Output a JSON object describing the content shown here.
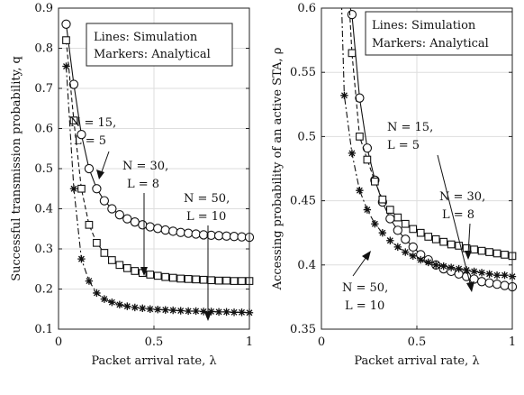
{
  "chart_data": [
    {
      "type": "line",
      "xlabel": "Packet arrival rate, λ",
      "ylabel": "Successful transmission probability, q",
      "xlim": [
        0,
        1
      ],
      "ylim": [
        0.1,
        0.9
      ],
      "xticks": [
        0,
        0.5,
        1
      ],
      "xtick_labels": [
        "0",
        "0.5",
        "1"
      ],
      "yticks": [
        0.1,
        0.2,
        0.3,
        0.4,
        0.5,
        0.6,
        0.7,
        0.8,
        0.9
      ],
      "ytick_labels": [
        "0.1",
        "0.2",
        "0.3",
        "0.4",
        "0.5",
        "0.6",
        "0.7",
        "0.8",
        "0.9"
      ],
      "grid": true,
      "legend": {
        "line1": "Lines: Simulation",
        "line2": "Markers: Analytical",
        "position": "top-right"
      },
      "x": [
        0.04,
        0.08,
        0.12,
        0.16,
        0.2,
        0.24,
        0.28,
        0.32,
        0.36,
        0.4,
        0.44,
        0.48,
        0.52,
        0.56,
        0.6,
        0.64,
        0.68,
        0.72,
        0.76,
        0.8,
        0.84,
        0.88,
        0.92,
        0.96,
        1.0
      ],
      "series": [
        {
          "name_line1": "N = 15,",
          "name_line2": "L = 5",
          "marker": "circle",
          "line": "solid",
          "values": [
            0.86,
            0.71,
            0.585,
            0.5,
            0.45,
            0.42,
            0.4,
            0.385,
            0.375,
            0.367,
            0.36,
            0.355,
            0.351,
            0.347,
            0.344,
            0.341,
            0.339,
            0.337,
            0.335,
            0.334,
            0.333,
            0.332,
            0.331,
            0.33,
            0.329
          ]
        },
        {
          "name_line1": "N = 30,",
          "name_line2": "L = 8",
          "marker": "square",
          "line": "dashed",
          "values": [
            0.82,
            0.62,
            0.45,
            0.36,
            0.315,
            0.29,
            0.272,
            0.26,
            0.252,
            0.245,
            0.24,
            0.236,
            0.233,
            0.23,
            0.228,
            0.226,
            0.225,
            0.224,
            0.223,
            0.222,
            0.221,
            0.221,
            0.22,
            0.22,
            0.22
          ]
        },
        {
          "name_line1": "N = 50,",
          "name_line2": "L = 10",
          "marker": "asterisk",
          "line": "dashdot",
          "values": [
            0.755,
            0.45,
            0.275,
            0.22,
            0.19,
            0.175,
            0.167,
            0.161,
            0.157,
            0.154,
            0.152,
            0.15,
            0.149,
            0.148,
            0.147,
            0.146,
            0.145,
            0.145,
            0.144,
            0.144,
            0.143,
            0.143,
            0.142,
            0.142,
            0.141
          ]
        }
      ]
    },
    {
      "type": "line",
      "xlabel": "Packet arrival rate, λ",
      "ylabel": "Accessing probability of an active STA, ρ",
      "xlim": [
        0,
        1
      ],
      "ylim": [
        0.35,
        0.6
      ],
      "xticks": [
        0,
        0.5,
        1
      ],
      "xtick_labels": [
        "0",
        "0.5",
        "1"
      ],
      "yticks": [
        0.35,
        0.4,
        0.45,
        0.5,
        0.55,
        0.6
      ],
      "ytick_labels": [
        "0.35",
        "0.4",
        "0.45",
        "0.5",
        "0.55",
        "0.6"
      ],
      "grid": true,
      "legend": {
        "line1": "Lines: Simulation",
        "line2": "Markers: Analytical",
        "position": "top-right"
      },
      "series": [
        {
          "name_line1": "N = 15,",
          "name_line2": "L = 5",
          "marker": "circle",
          "line": "solid",
          "x": [
            0.16,
            0.2,
            0.24,
            0.28,
            0.32,
            0.36,
            0.4,
            0.44,
            0.48,
            0.52,
            0.56,
            0.6,
            0.64,
            0.68,
            0.72,
            0.76,
            0.8,
            0.84,
            0.88,
            0.92,
            0.96,
            1.0
          ],
          "values": [
            0.595,
            0.53,
            0.491,
            0.466,
            0.449,
            0.436,
            0.427,
            0.42,
            0.414,
            0.408,
            0.404,
            0.4,
            0.397,
            0.395,
            0.393,
            0.391,
            0.389,
            0.387,
            0.386,
            0.385,
            0.384,
            0.383
          ]
        },
        {
          "name_line1": "N = 30,",
          "name_line2": "L = 8",
          "marker": "square",
          "line": "dashed",
          "x": [
            0.16,
            0.2,
            0.24,
            0.28,
            0.32,
            0.36,
            0.4,
            0.44,
            0.48,
            0.52,
            0.56,
            0.6,
            0.64,
            0.68,
            0.72,
            0.76,
            0.8,
            0.84,
            0.88,
            0.92,
            0.96,
            1.0
          ],
          "values": [
            0.565,
            0.5,
            0.482,
            0.465,
            0.451,
            0.443,
            0.437,
            0.432,
            0.428,
            0.425,
            0.422,
            0.42,
            0.418,
            0.416,
            0.415,
            0.413,
            0.412,
            0.411,
            0.41,
            0.409,
            0.408,
            0.407
          ]
        },
        {
          "name_line1": "N = 50,",
          "name_line2": "L = 10",
          "marker": "asterisk",
          "line": "dashdot",
          "x": [
            0.12,
            0.16,
            0.2,
            0.24,
            0.28,
            0.32,
            0.36,
            0.4,
            0.44,
            0.48,
            0.52,
            0.56,
            0.6,
            0.64,
            0.68,
            0.72,
            0.76,
            0.8,
            0.84,
            0.88,
            0.92,
            0.96,
            1.0
          ],
          "values": [
            0.532,
            0.487,
            0.458,
            0.443,
            0.432,
            0.425,
            0.419,
            0.414,
            0.41,
            0.407,
            0.404,
            0.402,
            0.4,
            0.399,
            0.398,
            0.397,
            0.396,
            0.395,
            0.394,
            0.393,
            0.392,
            0.392,
            0.391
          ]
        }
      ]
    }
  ]
}
